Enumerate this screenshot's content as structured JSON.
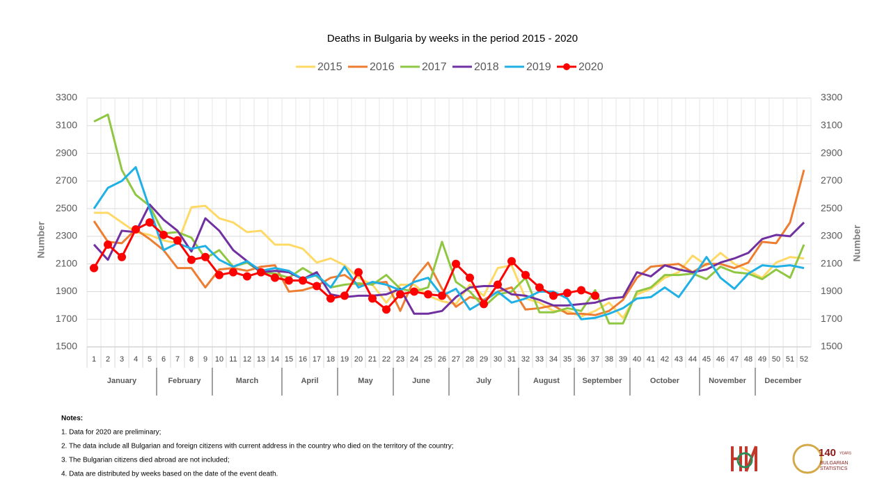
{
  "chart_data": {
    "type": "line",
    "title": "Deaths in Bulgaria by weeks in the period 2015 - 2020",
    "y_label": "Number",
    "y2_label": "Number",
    "categories": [
      "1",
      "2",
      "3",
      "4",
      "5",
      "6",
      "7",
      "8",
      "9",
      "10",
      "11",
      "12",
      "13",
      "14",
      "15",
      "16",
      "17",
      "18",
      "19",
      "20",
      "21",
      "22",
      "23",
      "24",
      "25",
      "26",
      "27",
      "28",
      "29",
      "30",
      "31",
      "32",
      "33",
      "34",
      "35",
      "36",
      "37",
      "38",
      "39",
      "40",
      "41",
      "42",
      "43",
      "44",
      "45",
      "46",
      "47",
      "48",
      "49",
      "50",
      "51",
      "52"
    ],
    "month_groups": [
      {
        "label": "January",
        "span": 5
      },
      {
        "label": "February",
        "span": 4
      },
      {
        "label": "March",
        "span": 5
      },
      {
        "label": "April",
        "span": 4
      },
      {
        "label": "May",
        "span": 4
      },
      {
        "label": "June",
        "span": 4
      },
      {
        "label": "July",
        "span": 5
      },
      {
        "label": "August",
        "span": 4
      },
      {
        "label": "September",
        "span": 4
      },
      {
        "label": "October",
        "span": 5
      },
      {
        "label": "November",
        "span": 4
      },
      {
        "label": "December",
        "span": 4
      }
    ],
    "ylim": [
      1500,
      3300
    ],
    "yticks": [
      1500,
      1700,
      1900,
      2100,
      2300,
      2500,
      2700,
      2900,
      3100,
      3300
    ],
    "y2lim": [
      1500,
      3300
    ],
    "y2ticks": [
      1500,
      1700,
      1900,
      2100,
      2300,
      2500,
      2700,
      2900,
      3100,
      3300
    ],
    "grid": true,
    "legend": "top",
    "series": [
      {
        "name": "2015",
        "color": "#ffd966",
        "values": [
          2470,
          2470,
          2400,
          2330,
          2310,
          2270,
          2250,
          2510,
          2520,
          2430,
          2400,
          2330,
          2340,
          2240,
          2240,
          2210,
          2110,
          2140,
          2090,
          2000,
          1950,
          1820,
          1950,
          1950,
          1870,
          1830,
          1810,
          1950,
          1870,
          2070,
          2090,
          1850,
          1820,
          1760,
          1760,
          1720,
          1760,
          1820,
          1710,
          1880,
          1920,
          2000,
          2040,
          2160,
          2090,
          2180,
          2100,
          2050,
          2000,
          2110,
          2150,
          2140
        ]
      },
      {
        "name": "2016",
        "color": "#ed7d31",
        "values": [
          2410,
          2260,
          2250,
          2350,
          2280,
          2200,
          2070,
          2070,
          1930,
          2060,
          2070,
          2050,
          2080,
          2090,
          1900,
          1910,
          1940,
          2000,
          2020,
          1950,
          1960,
          1970,
          1760,
          1990,
          2110,
          1920,
          1790,
          1860,
          1840,
          1900,
          1930,
          1770,
          1780,
          1800,
          1740,
          1740,
          1730,
          1760,
          1840,
          2000,
          2080,
          2090,
          2100,
          2040,
          2100,
          2100,
          2070,
          2110,
          2260,
          2250,
          2400,
          2780
        ]
      },
      {
        "name": "2017",
        "color": "#8fc742",
        "values": [
          3130,
          3180,
          2780,
          2600,
          2520,
          2320,
          2330,
          2290,
          2140,
          2200,
          2080,
          2110,
          2040,
          2030,
          2000,
          2070,
          2010,
          1930,
          1950,
          1960,
          1950,
          2020,
          1920,
          1900,
          1930,
          2260,
          1970,
          1900,
          1790,
          1880,
          1900,
          2000,
          1750,
          1750,
          1780,
          1760,
          1910,
          1670,
          1670,
          1900,
          1930,
          2020,
          2020,
          2030,
          1990,
          2080,
          2040,
          2030,
          1990,
          2060,
          2000,
          2240
        ]
      },
      {
        "name": "2018",
        "color": "#7030a0",
        "values": [
          2240,
          2130,
          2340,
          2330,
          2530,
          2420,
          2340,
          2190,
          2430,
          2340,
          2200,
          2120,
          2040,
          2050,
          2040,
          1990,
          2040,
          1880,
          1860,
          1870,
          1870,
          1880,
          1920,
          1740,
          1740,
          1760,
          1860,
          1930,
          1940,
          1940,
          1880,
          1870,
          1840,
          1800,
          1800,
          1810,
          1820,
          1850,
          1860,
          2040,
          2010,
          2090,
          2060,
          2040,
          2060,
          2110,
          2140,
          2180,
          2280,
          2310,
          2300,
          2400
        ]
      },
      {
        "name": "2019",
        "color": "#1fb0e6",
        "values": [
          2500,
          2650,
          2700,
          2800,
          2500,
          2200,
          2250,
          2210,
          2230,
          2130,
          2080,
          2120,
          2050,
          2070,
          2050,
          1990,
          2020,
          1930,
          2080,
          1930,
          1970,
          1950,
          1910,
          1970,
          2000,
          1870,
          1920,
          1770,
          1830,
          1900,
          1820,
          1850,
          1900,
          1900,
          1850,
          1700,
          1710,
          1740,
          1780,
          1850,
          1860,
          1930,
          1860,
          2000,
          2150,
          2000,
          1920,
          2030,
          2090,
          2080,
          2090,
          2070
        ]
      },
      {
        "name": "2020",
        "color": "#ff0000",
        "marker": true,
        "values": [
          2070,
          2240,
          2150,
          2350,
          2400,
          2310,
          2270,
          2130,
          2150,
          2020,
          2040,
          2010,
          2040,
          2000,
          1980,
          1980,
          1940,
          1850,
          1870,
          2040,
          1850,
          1770,
          1880,
          1900,
          1880,
          1870,
          2100,
          2000,
          1810,
          1950,
          2120,
          2020,
          1930,
          1870,
          1890,
          1910,
          1870,
          null,
          null,
          null,
          null,
          null,
          null,
          null,
          null,
          null,
          null,
          null,
          null,
          null,
          null,
          null
        ]
      }
    ]
  },
  "notes": {
    "title": "Notes:",
    "items": [
      "1. Data for 2020 are preliminary;",
      "2. The data include all Bulgarian and foreign citizens with current address in the country who died on the territory of the country;",
      "3. The Bulgarian citizens died abroad are not included;",
      "4. Data are distributed by weeks  based on the date of the event death."
    ]
  },
  "logo": {
    "number": "140",
    "years": "YEARS",
    "line1": "BULGARIAN",
    "line2": "STATISTICS"
  }
}
